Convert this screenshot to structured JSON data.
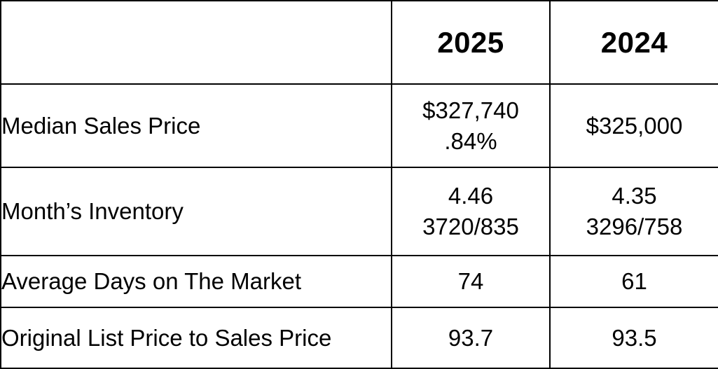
{
  "page": {
    "background_color": "#ffffff",
    "border_color": "#000000",
    "text_color": "#000000"
  },
  "chart_data": {
    "type": "table",
    "columns": [
      "",
      "2025",
      "2024"
    ],
    "rows": [
      {
        "label": "Median Sales Price",
        "y2025": "$327,740\n.84%",
        "y2024": "$325,000"
      },
      {
        "label": "Month’s Inventory",
        "y2025": "4.46\n3720/835",
        "y2024": "4.35\n3296/758"
      },
      {
        "label": "Average Days on The Market",
        "y2025": "74",
        "y2024": "61"
      },
      {
        "label": "Original List Price to Sales Price",
        "y2025": "93.7",
        "y2024": "93.5"
      }
    ]
  }
}
